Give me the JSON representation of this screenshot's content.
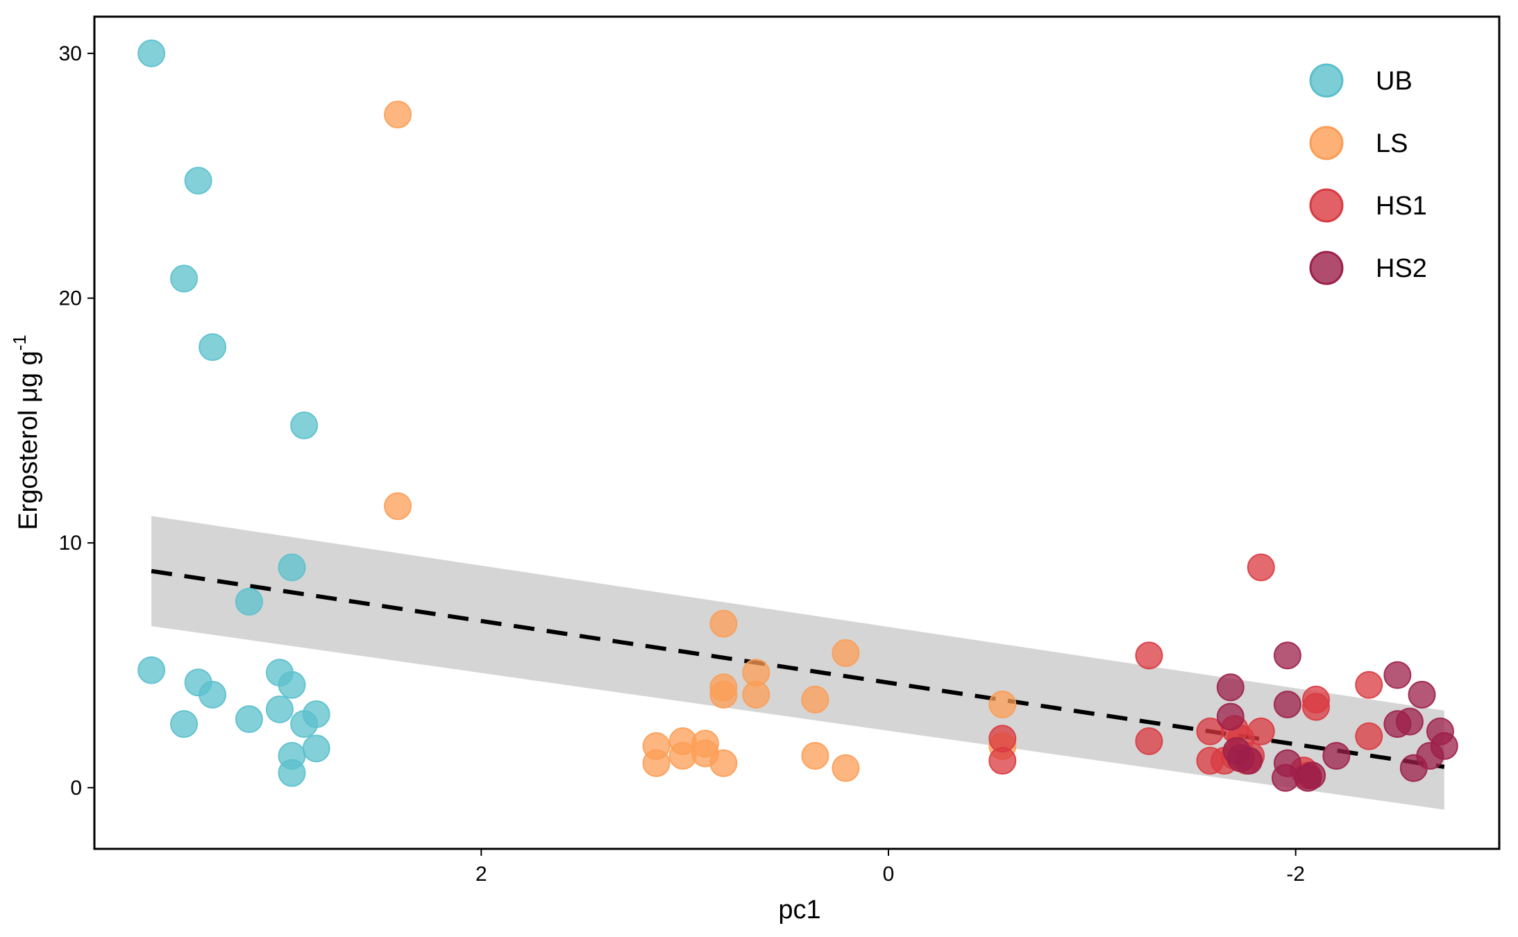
{
  "chart_data": {
    "type": "scatter",
    "xlabel": "pc1",
    "ylabel": {
      "main": "Ergosterol  μg  g",
      "superscript": "-1"
    },
    "x_reversed": true,
    "xlim": [
      3.9,
      -3.0
    ],
    "ylim": [
      -2.5,
      31.5
    ],
    "xticks": [
      {
        "value": 2,
        "label": "2"
      },
      {
        "value": 0,
        "label": "0"
      },
      {
        "value": -2,
        "label": "-2"
      }
    ],
    "yticks": [
      {
        "value": 0,
        "label": "0"
      },
      {
        "value": 10,
        "label": "10"
      },
      {
        "value": 20,
        "label": "20"
      },
      {
        "value": 30,
        "label": "30"
      }
    ],
    "grid": false,
    "legend_position": "top-right",
    "series": [
      {
        "name": "UB",
        "color": "#5BC0CC",
        "points": [
          [
            3.62,
            30.0
          ],
          [
            3.39,
            24.8
          ],
          [
            3.46,
            20.8
          ],
          [
            3.32,
            18.0
          ],
          [
            2.87,
            14.8
          ],
          [
            2.93,
            9.0
          ],
          [
            3.14,
            7.6
          ],
          [
            3.62,
            4.8
          ],
          [
            3.39,
            4.3
          ],
          [
            3.32,
            3.8
          ],
          [
            2.99,
            4.7
          ],
          [
            2.93,
            4.2
          ],
          [
            3.46,
            2.6
          ],
          [
            3.14,
            2.8
          ],
          [
            2.99,
            3.2
          ],
          [
            2.87,
            2.6
          ],
          [
            2.81,
            3.0
          ],
          [
            2.93,
            1.3
          ],
          [
            2.81,
            1.6
          ],
          [
            2.93,
            0.6
          ]
        ]
      },
      {
        "name": "LS",
        "color": "#FC9D55",
        "points": [
          [
            2.41,
            27.5
          ],
          [
            2.41,
            11.5
          ],
          [
            0.81,
            6.7
          ],
          [
            0.21,
            5.5
          ],
          [
            0.65,
            4.7
          ],
          [
            0.81,
            4.1
          ],
          [
            0.81,
            3.8
          ],
          [
            0.65,
            3.8
          ],
          [
            0.36,
            3.6
          ],
          [
            -0.56,
            3.4
          ],
          [
            1.14,
            1.7
          ],
          [
            1.01,
            1.9
          ],
          [
            0.9,
            1.8
          ],
          [
            1.01,
            1.3
          ],
          [
            0.9,
            1.4
          ],
          [
            1.14,
            1.0
          ],
          [
            0.81,
            1.0
          ],
          [
            0.36,
            1.3
          ],
          [
            0.21,
            0.8
          ],
          [
            -0.56,
            1.7
          ]
        ]
      },
      {
        "name": "HS1",
        "color": "#D93A40",
        "points": [
          [
            -1.83,
            9.0
          ],
          [
            -1.28,
            5.4
          ],
          [
            -2.1,
            3.6
          ],
          [
            -2.1,
            3.3
          ],
          [
            -2.36,
            4.2
          ],
          [
            -1.7,
            2.4
          ],
          [
            -1.83,
            2.3
          ],
          [
            -1.58,
            2.3
          ],
          [
            -1.28,
            1.9
          ],
          [
            -2.36,
            2.1
          ],
          [
            -0.56,
            2.0
          ],
          [
            -0.56,
            1.1
          ],
          [
            -1.58,
            1.1
          ],
          [
            -1.7,
            1.3
          ],
          [
            -1.78,
            1.3
          ],
          [
            -1.65,
            1.1
          ],
          [
            -1.76,
            1.1
          ],
          [
            -2.04,
            0.7
          ],
          [
            -2.06,
            0.5
          ],
          [
            -1.73,
            2.0
          ]
        ]
      },
      {
        "name": "HS2",
        "color": "#9C1F4A",
        "points": [
          [
            -1.96,
            5.4
          ],
          [
            -2.5,
            4.6
          ],
          [
            -1.68,
            4.1
          ],
          [
            -2.62,
            3.8
          ],
          [
            -1.96,
            3.4
          ],
          [
            -1.68,
            2.9
          ],
          [
            -2.5,
            2.6
          ],
          [
            -2.56,
            2.7
          ],
          [
            -2.71,
            2.3
          ],
          [
            -2.73,
            1.7
          ],
          [
            -2.66,
            1.3
          ],
          [
            -2.2,
            1.3
          ],
          [
            -1.71,
            1.5
          ],
          [
            -1.96,
            1.0
          ],
          [
            -1.73,
            1.2
          ],
          [
            -1.95,
            0.4
          ],
          [
            -2.06,
            0.4
          ],
          [
            -2.08,
            0.5
          ],
          [
            -2.58,
            0.8
          ],
          [
            -1.77,
            1.1
          ]
        ]
      }
    ],
    "trend_line": {
      "style": "dashed",
      "color": "#000000",
      "x_range": [
        3.62,
        -2.73
      ],
      "y_range": [
        8.85,
        0.85
      ]
    },
    "confidence_band": {
      "color": "#D3D3D3",
      "upper": [
        [
          3.62,
          11.1
        ],
        [
          -2.73,
          3.15
        ]
      ],
      "lower": [
        [
          3.62,
          6.6
        ],
        [
          -2.73,
          -0.9
        ]
      ]
    }
  }
}
